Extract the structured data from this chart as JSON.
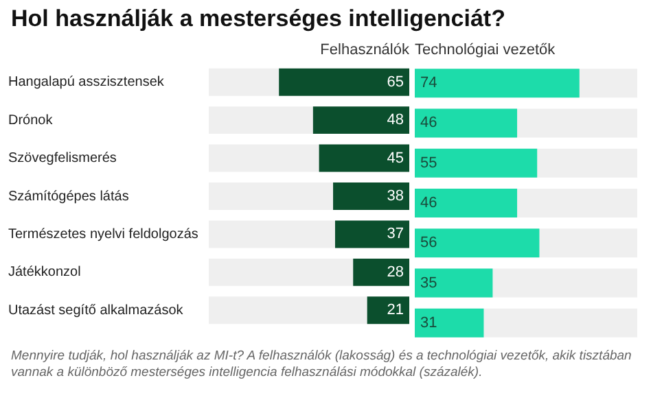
{
  "chart_data": [
    {
      "type": "bar",
      "orientation": "horizontal",
      "title": "Hol használják a mesterséges intelligenciát?",
      "categories": [
        "Hangalapú asszisztensek",
        "Drónok",
        "Szövegfelismerés",
        "Számítógépes látás",
        "Természetes nyelvi feldolgozás",
        "Játékkonzol",
        "Utazást segítő alkalmazások"
      ],
      "series": [
        {
          "name": "Felhasználók",
          "color": "#0b4f2d",
          "values": [
            65,
            48,
            45,
            38,
            37,
            28,
            21
          ]
        }
      ],
      "xlim": [
        100,
        0
      ],
      "data_labels": true,
      "tick_labels": "y",
      "annotations": [
        "Mennyire tudják, hol használják az MI-t? A felhasználók (lakosság) és a technológiai vezetők, akik tisztában vannak a különböző mesterséges intelligencia felhasználási módokkal (százalék)."
      ]
    },
    {
      "type": "bar",
      "orientation": "horizontal",
      "categories": [
        null,
        null,
        null,
        null,
        null,
        null,
        null
      ],
      "series": [
        {
          "name": "Technológiai vezetők",
          "color": "#1ddcaa",
          "values": [
            74,
            46,
            55,
            46,
            56,
            35,
            31
          ]
        }
      ],
      "xlim": [
        0,
        100
      ],
      "data_labels": true,
      "tick_labels": false
    }
  ]
}
